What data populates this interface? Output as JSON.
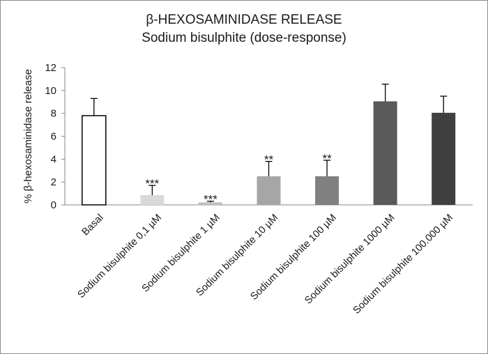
{
  "chart_data": {
    "type": "bar",
    "title": "β-HEXOSAMINIDASE RELEASE",
    "subtitle": "Sodium bisulphite (dose-response)",
    "xlabel": "",
    "ylabel": "% β-hexosaminidase release",
    "ylim": [
      0,
      12
    ],
    "yticks": [
      "0",
      "2",
      "4",
      "6",
      "8",
      "10",
      "12"
    ],
    "grid": false,
    "legend": "none",
    "categories": [
      "Basal",
      "Sodium bisulphite 0,1 µM",
      "Sodium bisulphite 1 µM",
      "Sodium bisulphite 10 µM",
      "Sodium bisulphite 100 µM",
      "Sodium bisulphite 1000 µM",
      "Sodium bisulphite 100.000 µM"
    ],
    "values": [
      7.8,
      0.85,
      0.22,
      2.5,
      2.5,
      9.05,
      8.05
    ],
    "error_upper": [
      1.5,
      0.85,
      0.1,
      1.3,
      1.4,
      1.5,
      1.45
    ],
    "significance": [
      "",
      "***",
      "***",
      "**",
      "**",
      "",
      ""
    ],
    "bar_colors": [
      "#ffffff",
      "#d9d9d9",
      "#bfbfbf",
      "#a6a6a6",
      "#808080",
      "#595959",
      "#404040"
    ]
  }
}
